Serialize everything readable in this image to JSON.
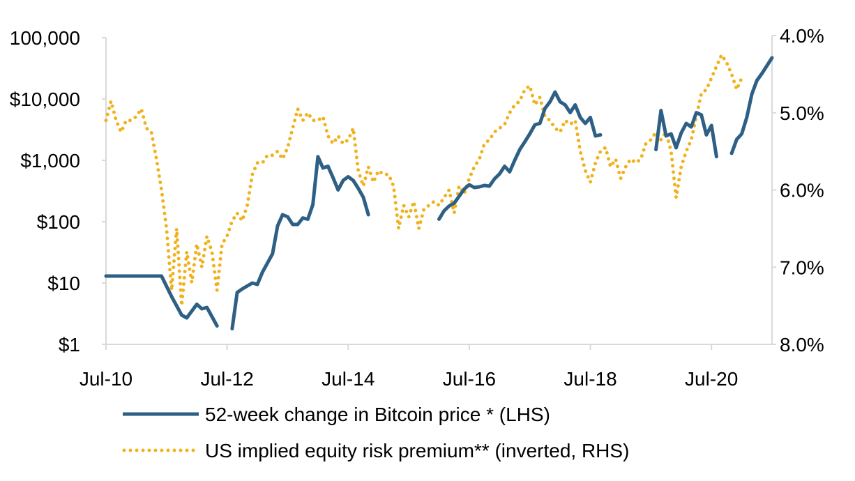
{
  "chart_data": {
    "type": "line",
    "title": "",
    "left_axis": {
      "scale": "log",
      "range": [
        1,
        100000
      ],
      "tick_values": [
        1,
        10,
        100,
        1000,
        10000,
        100000
      ],
      "tick_labels": [
        "$1",
        "$10",
        "$100",
        "$1,000",
        "$10,000",
        "100,000"
      ]
    },
    "right_axis": {
      "scale": "linear",
      "inverted": true,
      "range": [
        4.0,
        8.0
      ],
      "tick_values": [
        4.0,
        5.0,
        6.0,
        7.0,
        8.0
      ],
      "tick_labels": [
        "4.0%",
        "5.0%",
        "6.0%",
        "7.0%",
        "8.0%"
      ]
    },
    "x_axis": {
      "range": [
        "2010-07",
        "2021-03"
      ],
      "tick_values": [
        "2010-07",
        "2012-07",
        "2014-07",
        "2016-07",
        "2018-07",
        "2020-07"
      ],
      "tick_labels": [
        "Jul-10",
        "Jul-12",
        "Jul-14",
        "Jul-16",
        "Jul-18",
        "Jul-20"
      ]
    },
    "grid": false,
    "legend_position": "bottom",
    "colors": {
      "bitcoin": "#2e5f85",
      "erp": "#f0b21c",
      "axis": "#d9d9d9"
    },
    "series": [
      {
        "name": "52-week change in Bitcoin price * (LHS)",
        "axis": "left",
        "style": "solid",
        "segments": [
          [
            [
              "2010-07",
              13
            ],
            [
              "2010-10",
              13
            ],
            [
              "2011-01",
              13
            ],
            [
              "2011-04",
              13
            ],
            [
              "2011-06",
              13
            ],
            [
              "2011-08",
              6
            ],
            [
              "2011-10",
              3
            ],
            [
              "2011-11",
              2.7
            ],
            [
              "2012-01",
              4.5
            ],
            [
              "2012-02",
              3.8
            ],
            [
              "2012-03",
              4
            ],
            [
              "2012-05",
              2
            ]
          ],
          [
            [
              "2012-08",
              1.8
            ],
            [
              "2012-09",
              7
            ],
            [
              "2012-10",
              8
            ],
            [
              "2012-12",
              10
            ],
            [
              "2013-01",
              9.5
            ],
            [
              "2013-02",
              15
            ],
            [
              "2013-04",
              30
            ],
            [
              "2013-05",
              85
            ],
            [
              "2013-06",
              130
            ],
            [
              "2013-07",
              120
            ],
            [
              "2013-08",
              90
            ],
            [
              "2013-09",
              90
            ],
            [
              "2013-10",
              115
            ],
            [
              "2013-11",
              110
            ],
            [
              "2013-12",
              190
            ],
            [
              "2014-01",
              1150
            ],
            [
              "2014-02",
              750
            ],
            [
              "2014-03",
              800
            ],
            [
              "2014-04",
              520
            ],
            [
              "2014-05",
              330
            ],
            [
              "2014-06",
              470
            ],
            [
              "2014-07",
              540
            ],
            [
              "2014-08",
              470
            ],
            [
              "2014-09",
              350
            ],
            [
              "2014-10",
              250
            ],
            [
              "2014-11",
              130
            ]
          ],
          [
            [
              "2016-01",
              110
            ],
            [
              "2016-02",
              150
            ],
            [
              "2016-03",
              180
            ],
            [
              "2016-04",
              200
            ],
            [
              "2016-05",
              260
            ],
            [
              "2016-06",
              340
            ],
            [
              "2016-07",
              400
            ],
            [
              "2016-08",
              360
            ],
            [
              "2016-09",
              370
            ],
            [
              "2016-10",
              390
            ],
            [
              "2016-11",
              380
            ],
            [
              "2016-12",
              500
            ],
            [
              "2017-01",
              600
            ],
            [
              "2017-02",
              800
            ],
            [
              "2017-03",
              650
            ],
            [
              "2017-04",
              1000
            ],
            [
              "2017-05",
              1500
            ],
            [
              "2017-06",
              2000
            ],
            [
              "2017-07",
              2700
            ],
            [
              "2017-08",
              3800
            ],
            [
              "2017-09",
              4000
            ],
            [
              "2017-10",
              7000
            ],
            [
              "2017-11",
              9000
            ],
            [
              "2017-12",
              13000
            ],
            [
              "2018-01",
              9000
            ],
            [
              "2018-02",
              8000
            ],
            [
              "2018-03",
              6000
            ],
            [
              "2018-04",
              8000
            ],
            [
              "2018-05",
              5000
            ],
            [
              "2018-06",
              4000
            ],
            [
              "2018-07",
              5000
            ],
            [
              "2018-08",
              2500
            ],
            [
              "2018-09",
              2600
            ]
          ],
          [
            [
              "2019-08",
              1500
            ],
            [
              "2019-09",
              6500
            ],
            [
              "2019-10",
              2500
            ],
            [
              "2019-11",
              2700
            ],
            [
              "2019-12",
              1600
            ],
            [
              "2020-01",
              2800
            ],
            [
              "2020-02",
              4000
            ],
            [
              "2020-03",
              3500
            ],
            [
              "2020-04",
              6000
            ],
            [
              "2020-05",
              5500
            ],
            [
              "2020-06",
              2600
            ],
            [
              "2020-07",
              3700
            ],
            [
              "2020-08",
              1150
            ]
          ],
          [
            [
              "2020-11",
              1300
            ],
            [
              "2020-12",
              2200
            ],
            [
              "2021-01",
              2700
            ],
            [
              "2021-02",
              5000
            ],
            [
              "2021-03",
              12000
            ],
            [
              "2021-04",
              20000
            ],
            [
              "2021-05",
              26000
            ],
            [
              "2021-06",
              35000
            ],
            [
              "2021-07",
              47000
            ]
          ]
        ]
      },
      {
        "name": "US implied equity risk premium** (inverted, RHS)",
        "axis": "right",
        "style": "dotted",
        "points": [
          [
            "2010-07",
            5.1
          ],
          [
            "2010-08",
            4.85
          ],
          [
            "2010-09",
            5.1
          ],
          [
            "2010-10",
            5.25
          ],
          [
            "2010-11",
            5.1
          ],
          [
            "2010-12",
            5.1
          ],
          [
            "2011-01",
            5.05
          ],
          [
            "2011-02",
            4.95
          ],
          [
            "2011-03",
            5.2
          ],
          [
            "2011-04",
            5.25
          ],
          [
            "2011-05",
            5.6
          ],
          [
            "2011-06",
            6.0
          ],
          [
            "2011-07",
            6.5
          ],
          [
            "2011-08",
            7.3
          ],
          [
            "2011-09",
            6.5
          ],
          [
            "2011-10",
            7.5
          ],
          [
            "2011-11",
            6.8
          ],
          [
            "2011-12",
            7.2
          ],
          [
            "2012-01",
            6.7
          ],
          [
            "2012-02",
            7.0
          ],
          [
            "2012-03",
            6.6
          ],
          [
            "2012-04",
            6.8
          ],
          [
            "2012-05",
            7.3
          ],
          [
            "2012-06",
            6.7
          ],
          [
            "2012-07",
            6.6
          ],
          [
            "2012-08",
            6.4
          ],
          [
            "2012-09",
            6.3
          ],
          [
            "2012-10",
            6.4
          ],
          [
            "2012-11",
            6.2
          ],
          [
            "2012-12",
            5.8
          ],
          [
            "2013-01",
            5.65
          ],
          [
            "2013-02",
            5.65
          ],
          [
            "2013-03",
            5.55
          ],
          [
            "2013-04",
            5.55
          ],
          [
            "2013-05",
            5.5
          ],
          [
            "2013-06",
            5.6
          ],
          [
            "2013-07",
            5.45
          ],
          [
            "2013-08",
            5.2
          ],
          [
            "2013-09",
            4.95
          ],
          [
            "2013-10",
            5.1
          ],
          [
            "2013-11",
            5.0
          ],
          [
            "2013-12",
            5.1
          ],
          [
            "2014-01",
            5.1
          ],
          [
            "2014-02",
            5.05
          ],
          [
            "2014-03",
            5.3
          ],
          [
            "2014-04",
            5.4
          ],
          [
            "2014-05",
            5.3
          ],
          [
            "2014-06",
            5.4
          ],
          [
            "2014-07",
            5.35
          ],
          [
            "2014-08",
            5.2
          ],
          [
            "2014-09",
            5.75
          ],
          [
            "2014-10",
            5.95
          ],
          [
            "2014-11",
            5.7
          ],
          [
            "2014-12",
            5.9
          ],
          [
            "2015-01",
            5.75
          ],
          [
            "2015-02",
            5.8
          ],
          [
            "2015-03",
            5.8
          ],
          [
            "2015-04",
            5.95
          ],
          [
            "2015-05",
            6.5
          ],
          [
            "2015-06",
            6.2
          ],
          [
            "2015-07",
            6.35
          ],
          [
            "2015-08",
            6.15
          ],
          [
            "2015-09",
            6.5
          ],
          [
            "2015-10",
            6.25
          ],
          [
            "2015-11",
            6.2
          ],
          [
            "2015-12",
            6.15
          ],
          [
            "2016-01",
            6.2
          ],
          [
            "2016-02",
            6.1
          ],
          [
            "2016-03",
            6.0
          ],
          [
            "2016-04",
            6.3
          ],
          [
            "2016-05",
            5.95
          ],
          [
            "2016-06",
            6.05
          ],
          [
            "2016-07",
            5.85
          ],
          [
            "2016-08",
            5.7
          ],
          [
            "2016-09",
            5.6
          ],
          [
            "2016-10",
            5.4
          ],
          [
            "2016-11",
            5.35
          ],
          [
            "2016-12",
            5.25
          ],
          [
            "2017-01",
            5.2
          ],
          [
            "2017-02",
            5.15
          ],
          [
            "2017-03",
            5.0
          ],
          [
            "2017-04",
            4.9
          ],
          [
            "2017-05",
            4.85
          ],
          [
            "2017-06",
            4.7
          ],
          [
            "2017-07",
            4.65
          ],
          [
            "2017-08",
            4.9
          ],
          [
            "2017-09",
            4.8
          ],
          [
            "2017-10",
            5.05
          ],
          [
            "2017-11",
            5.1
          ],
          [
            "2017-12",
            5.2
          ],
          [
            "2018-01",
            5.25
          ],
          [
            "2018-02",
            5.1
          ],
          [
            "2018-03",
            5.15
          ],
          [
            "2018-04",
            5.1
          ],
          [
            "2018-05",
            5.5
          ],
          [
            "2018-06",
            5.75
          ],
          [
            "2018-07",
            5.9
          ],
          [
            "2018-08",
            5.65
          ],
          [
            "2018-09",
            5.5
          ],
          [
            "2018-10",
            5.45
          ],
          [
            "2018-11",
            5.7
          ],
          [
            "2018-12",
            5.6
          ],
          [
            "2019-01",
            5.85
          ],
          [
            "2019-02",
            5.7
          ],
          [
            "2019-03",
            5.6
          ],
          [
            "2019-04",
            5.65
          ],
          [
            "2019-05",
            5.6
          ],
          [
            "2019-06",
            5.4
          ],
          [
            "2019-07",
            5.35
          ],
          [
            "2019-08",
            5.25
          ],
          [
            "2019-09",
            5.35
          ],
          [
            "2019-10",
            5.25
          ],
          [
            "2019-11",
            5.5
          ],
          [
            "2019-12",
            6.1
          ],
          [
            "2020-01",
            5.7
          ],
          [
            "2020-02",
            5.5
          ],
          [
            "2020-03",
            5.35
          ],
          [
            "2020-04",
            5.05
          ],
          [
            "2020-05",
            4.75
          ],
          [
            "2020-06",
            4.7
          ],
          [
            "2020-07",
            4.55
          ],
          [
            "2020-08",
            4.4
          ],
          [
            "2020-09",
            4.25
          ],
          [
            "2020-10",
            4.35
          ],
          [
            "2020-11",
            4.5
          ],
          [
            "2020-12",
            4.7
          ],
          [
            "2021-01",
            4.55
          ]
        ]
      }
    ],
    "legend": [
      "52-week change in Bitcoin price * (LHS)",
      "US implied equity risk premium** (inverted, RHS)"
    ]
  }
}
